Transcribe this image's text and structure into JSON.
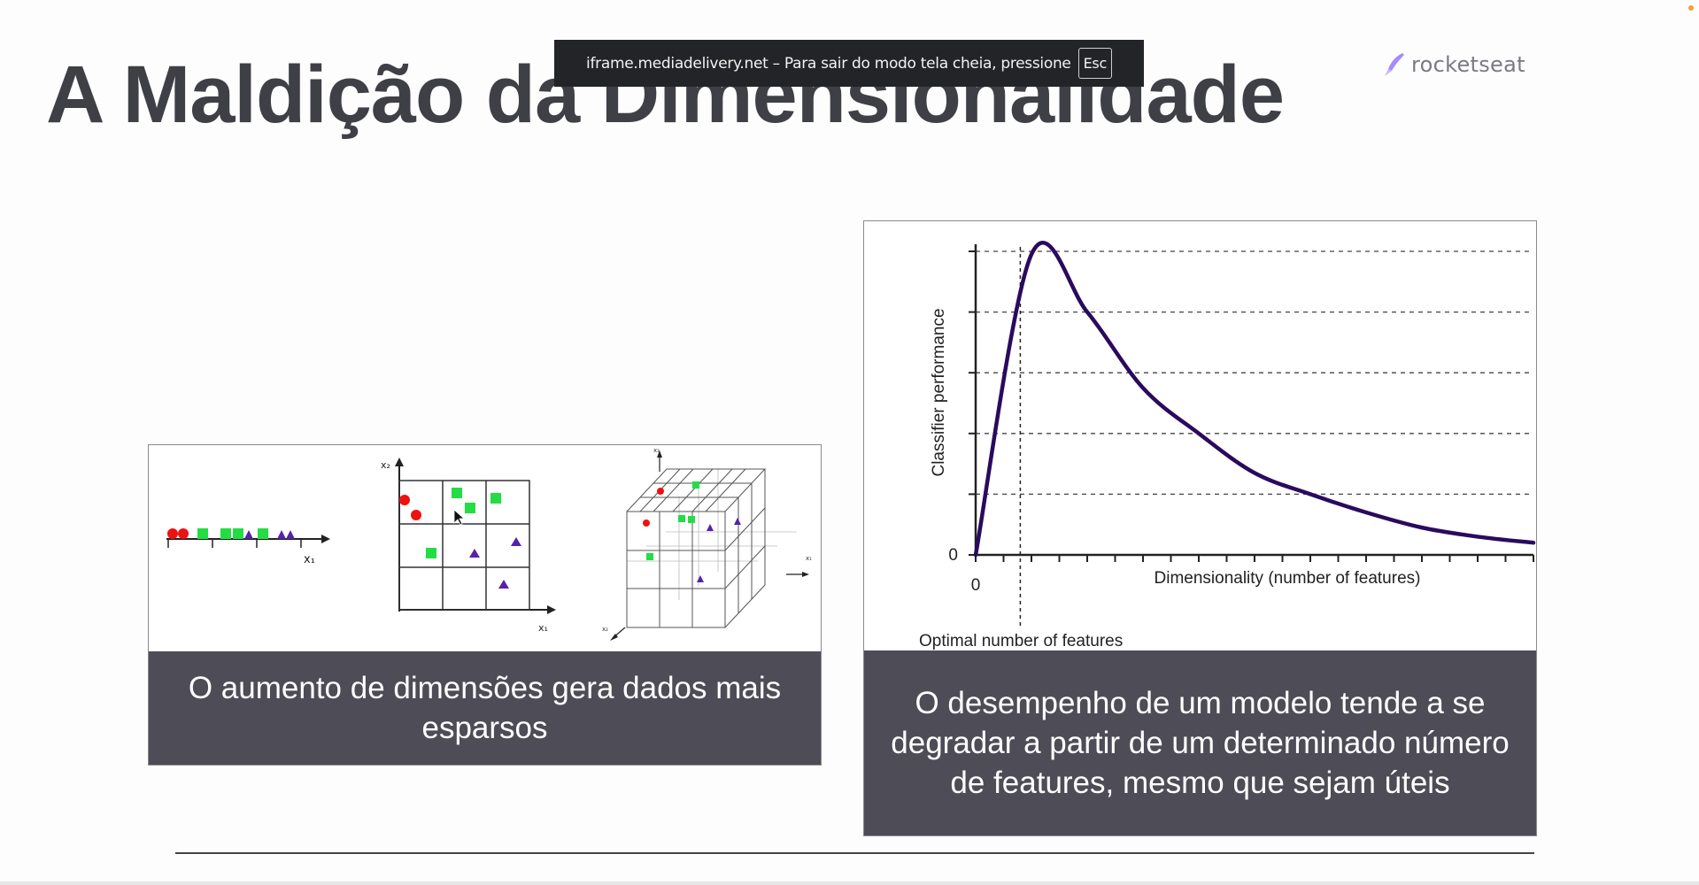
{
  "slide": {
    "title": "A Maldição da Dimensionalidade"
  },
  "fullscreen_notice": {
    "message": "iframe.mediadelivery.net – Para sair do modo tela cheia, pressione",
    "key": "Esc"
  },
  "logo": {
    "text": "rocketseat",
    "icon": "rocket-icon",
    "color": "#a78bfa"
  },
  "left_panel": {
    "caption": "O aumento de dimensões gera dados mais esparsos",
    "axis_labels": {
      "x1": "x₁",
      "x2": "x₂",
      "x3": "x₃"
    },
    "marker_colors": {
      "circle": "#ee1111",
      "square": "#22dd44",
      "triangle": "#5522aa"
    }
  },
  "right_panel": {
    "caption": "O desempenho de um modelo tende a se degradar a partir de um determinado número de features, mesmo que sejam úteis",
    "annotation": "Optimal number of features"
  },
  "chart_data": {
    "type": "line",
    "title": "",
    "xlabel": "Dimensionality (number of features)",
    "ylabel": "Classifier performance",
    "x_tick_labels": [
      "0"
    ],
    "y_tick_labels": [
      "0"
    ],
    "grid": "horizontal dashed",
    "series": [
      {
        "color": "#2a0a5e",
        "x": [
          0,
          0.1,
          0.2,
          0.3,
          0.4,
          0.5,
          0.6,
          0.7,
          0.8,
          0.9,
          1.0
        ],
        "y": [
          0,
          0.99,
          0.8,
          0.55,
          0.4,
          0.27,
          0.2,
          0.14,
          0.09,
          0.06,
          0.04
        ]
      }
    ],
    "optimum_x": 0.08,
    "xlim": [
      0,
      1
    ],
    "ylim": [
      0,
      1
    ]
  }
}
